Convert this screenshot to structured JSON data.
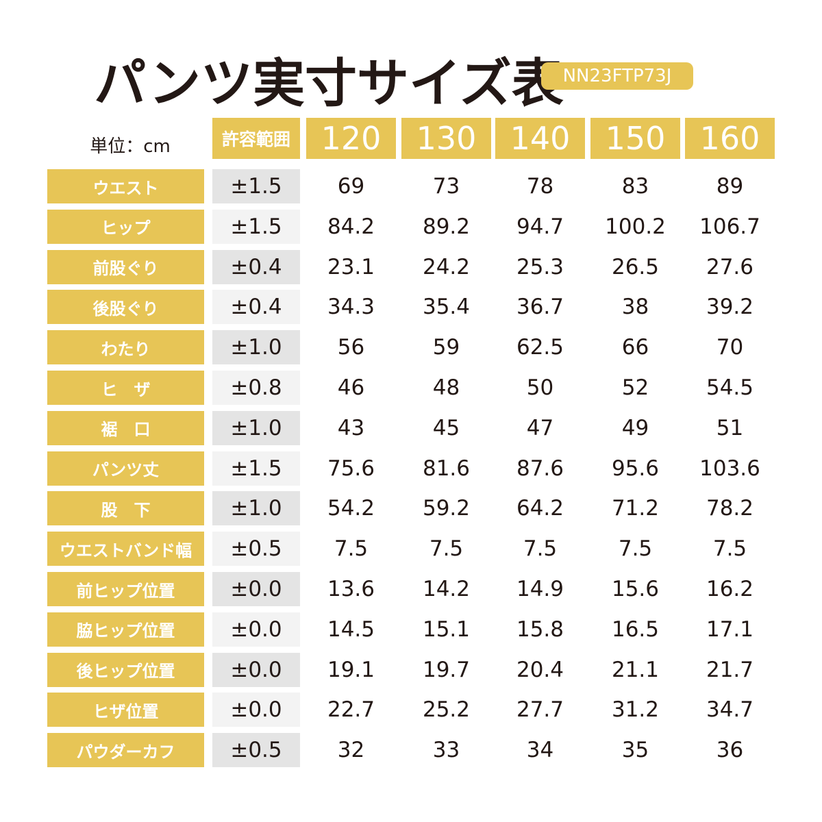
{
  "header": {
    "title": "パンツ実寸サイズ表",
    "badge": "NN23FTP73J",
    "unit": "単位：cm"
  },
  "table": {
    "tolerance_header": "許容範囲",
    "sizes": [
      "120",
      "130",
      "140",
      "150",
      "160"
    ],
    "rows": [
      {
        "label": "ウエスト",
        "tolerance": "±1.5",
        "values": [
          "69",
          "73",
          "78",
          "83",
          "89"
        ]
      },
      {
        "label": "ヒップ",
        "tolerance": "±1.5",
        "values": [
          "84.2",
          "89.2",
          "94.7",
          "100.2",
          "106.7"
        ]
      },
      {
        "label": "前股ぐり",
        "tolerance": "±0.4",
        "values": [
          "23.1",
          "24.2",
          "25.3",
          "26.5",
          "27.6"
        ]
      },
      {
        "label": "後股ぐり",
        "tolerance": "±0.4",
        "values": [
          "34.3",
          "35.4",
          "36.7",
          "38",
          "39.2"
        ]
      },
      {
        "label": "わたり",
        "tolerance": "±1.0",
        "values": [
          "56",
          "59",
          "62.5",
          "66",
          "70"
        ]
      },
      {
        "label": "ヒ　ザ",
        "tolerance": "±0.8",
        "values": [
          "46",
          "48",
          "50",
          "52",
          "54.5"
        ]
      },
      {
        "label": "裾　口",
        "tolerance": "±1.0",
        "values": [
          "43",
          "45",
          "47",
          "49",
          "51"
        ]
      },
      {
        "label": "パンツ丈",
        "tolerance": "±1.5",
        "values": [
          "75.6",
          "81.6",
          "87.6",
          "95.6",
          "103.6"
        ]
      },
      {
        "label": "股　下",
        "tolerance": "±1.0",
        "values": [
          "54.2",
          "59.2",
          "64.2",
          "71.2",
          "78.2"
        ]
      },
      {
        "label": "ウエストバンド幅",
        "tolerance": "±0.5",
        "values": [
          "7.5",
          "7.5",
          "7.5",
          "7.5",
          "7.5"
        ]
      },
      {
        "label": "前ヒップ位置",
        "tolerance": "±0.0",
        "values": [
          "13.6",
          "14.2",
          "14.9",
          "15.6",
          "16.2"
        ]
      },
      {
        "label": "脇ヒップ位置",
        "tolerance": "±0.0",
        "values": [
          "14.5",
          "15.1",
          "15.8",
          "16.5",
          "17.1"
        ]
      },
      {
        "label": "後ヒップ位置",
        "tolerance": "±0.0",
        "values": [
          "19.1",
          "19.7",
          "20.4",
          "21.1",
          "21.7"
        ]
      },
      {
        "label": "ヒザ位置",
        "tolerance": "±0.0",
        "values": [
          "22.7",
          "25.2",
          "27.7",
          "31.2",
          "34.7"
        ]
      },
      {
        "label": "パウダーカフ",
        "tolerance": "±0.5",
        "values": [
          "32",
          "33",
          "34",
          "35",
          "36"
        ]
      }
    ]
  }
}
